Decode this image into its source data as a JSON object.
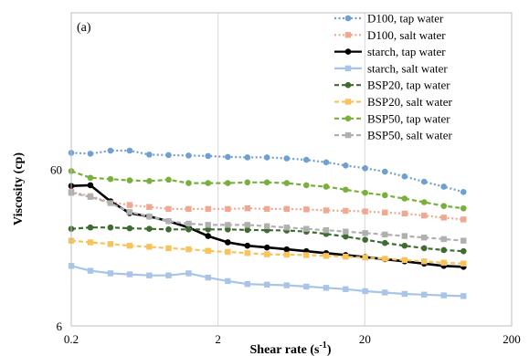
{
  "chart_data": {
    "type": "line",
    "panel_label": "(a)",
    "title": "",
    "xlabel": "Shear rate (s",
    "xlabel_sup": "-1",
    "xlabel_close": ")",
    "ylabel": "Viscosity (cp)",
    "x_scale": "log",
    "y_scale": "log",
    "xlim": [
      0.2,
      200
    ],
    "ylim": [
      6,
      600
    ],
    "x_ticks": [
      0.2,
      2,
      20,
      200
    ],
    "x_tick_labels": [
      "0.2",
      "2",
      "20",
      "200"
    ],
    "y_ticks": [
      6,
      60
    ],
    "y_tick_labels": [
      "6",
      "60"
    ],
    "grid": "vertical",
    "legend_position": "top-right",
    "x": [
      0.2,
      0.27,
      0.37,
      0.5,
      0.68,
      0.92,
      1.26,
      1.71,
      2.33,
      3.17,
      4.31,
      5.87,
      7.99,
      10.9,
      14.8,
      20.1,
      27.4,
      37.3,
      50.7,
      69.0,
      94.0
    ],
    "series": [
      {
        "name": "D100, tap water",
        "color": "#6fa0d0",
        "style": "dotted",
        "marker": "circle",
        "values": [
          76.5,
          75.5,
          79,
          79,
          74.5,
          74,
          73.5,
          73,
          72,
          71.5,
          71.5,
          70.5,
          69,
          66.5,
          63.5,
          61,
          58,
          54,
          50,
          46.5,
          43
        ]
      },
      {
        "name": "D100, salt water",
        "color": "#f0a890",
        "style": "dotted",
        "marker": "square",
        "values": [
          43,
          40.5,
          37,
          35.5,
          34.5,
          33.5,
          33.5,
          33.5,
          33.5,
          33.8,
          33.5,
          33.5,
          33.3,
          32.8,
          32.6,
          32.3,
          31.8,
          31.3,
          30.4,
          29.5,
          28.7
        ]
      },
      {
        "name": "starch, tap water",
        "color": "#000000",
        "style": "solid",
        "marker": "circle",
        "values": [
          47,
          47.5,
          37.5,
          31.5,
          30,
          28,
          25.5,
          22.5,
          20.5,
          19.5,
          19,
          18.5,
          18,
          17.5,
          17,
          16.5,
          16,
          15.5,
          15,
          14.5,
          14.3
        ]
      },
      {
        "name": "starch, salt water",
        "color": "#a8c4e8",
        "style": "solid",
        "marker": "square",
        "values": [
          14.5,
          13.5,
          13,
          12.8,
          12.6,
          12.6,
          13,
          12.2,
          11.6,
          11.1,
          11,
          10.9,
          10.7,
          10.5,
          10.3,
          10,
          9.8,
          9.6,
          9.5,
          9.4,
          9.3
        ]
      },
      {
        "name": "BSP20, tap water",
        "color": "#3e6b30",
        "style": "dashed",
        "marker": "circle",
        "values": [
          25,
          25.5,
          25.5,
          25.2,
          25,
          24.8,
          24.8,
          24.8,
          24.8,
          24.6,
          24.5,
          24.4,
          24,
          23.2,
          22.3,
          21.3,
          20.3,
          19.5,
          18.8,
          18.3,
          18
        ]
      },
      {
        "name": "BSP20, salt water",
        "color": "#f7c35a",
        "style": "dashed",
        "marker": "square",
        "values": [
          21,
          20.5,
          20,
          19.5,
          19.2,
          18.8,
          18.5,
          18.1,
          17.8,
          17.5,
          17.2,
          17.1,
          17,
          16.8,
          16.6,
          16.4,
          16.1,
          15.8,
          15.5,
          15.2,
          15
        ]
      },
      {
        "name": "BSP50, tap water",
        "color": "#79b03c",
        "style": "dashed",
        "marker": "circle",
        "values": [
          58.5,
          53,
          52,
          51,
          50.5,
          51.5,
          49,
          49,
          49,
          49.5,
          49.5,
          49,
          47.5,
          46.5,
          44.5,
          42.5,
          41,
          39,
          37,
          35,
          33.8
        ]
      },
      {
        "name": "BSP50, salt water",
        "color": "#b0b0b0",
        "style": "dashed",
        "marker": "square",
        "values": [
          42.5,
          40,
          36.5,
          32,
          30,
          28,
          27,
          26.5,
          26.5,
          26.5,
          26,
          25.5,
          25,
          24.5,
          24,
          23.5,
          23,
          22.5,
          22,
          21.5,
          21
        ]
      }
    ]
  }
}
